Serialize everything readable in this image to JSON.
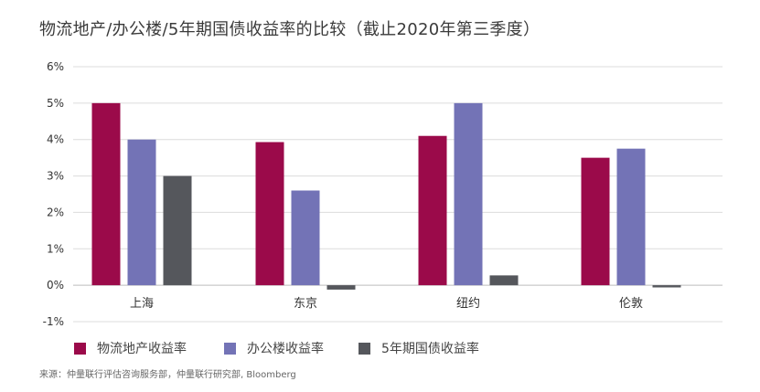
{
  "title": "物流地产/办公楼/5年期国债收益率的比较（截止2020年第三季度）",
  "source": "来源：仲量联行评估咨询服务部，仲量联行研究部, Bloomberg",
  "chart_data": {
    "type": "bar",
    "title": "物流地产/办公楼/5年期国债收益率的比较（截止2020年第三季度）",
    "xlabel": "",
    "ylabel": "",
    "categories": [
      "上海",
      "东京",
      "纽约",
      "伦敦"
    ],
    "series": [
      {
        "name": "物流地产收益率",
        "color": "#9b0a4a",
        "values": [
          5.0,
          3.93,
          4.1,
          3.5
        ]
      },
      {
        "name": "办公楼收益率",
        "color": "#7373b6",
        "values": [
          4.0,
          2.6,
          5.0,
          3.75
        ]
      },
      {
        "name": "5年期国债收益率",
        "color": "#55575c",
        "values": [
          3.0,
          -0.12,
          0.27,
          -0.06
        ]
      }
    ],
    "ylim": [
      -1,
      6
    ],
    "yticks": [
      -1,
      0,
      1,
      2,
      3,
      4,
      5,
      6
    ],
    "ytick_labels": [
      "-1%",
      "0%",
      "1%",
      "2%",
      "3%",
      "4%",
      "5%",
      "6%"
    ],
    "grid": true,
    "legend_position": "bottom"
  }
}
